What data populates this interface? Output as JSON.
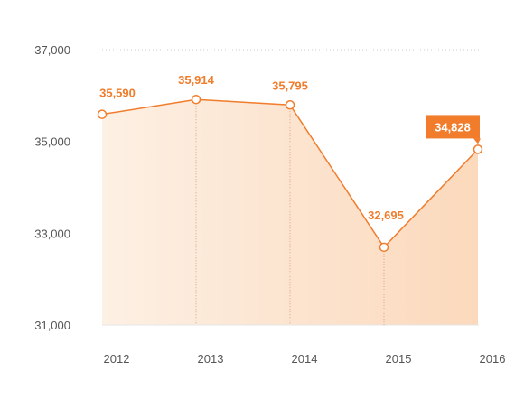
{
  "colors": {
    "accent": "#f07c2c",
    "area_light": "#fdf0e4",
    "area_dark": "#fbd9bc",
    "grid": "#cccccc",
    "tick_text": "#555555",
    "callout_text": "#ffffff"
  },
  "chart_data": {
    "type": "area",
    "title": "",
    "xlabel": "",
    "ylabel": "",
    "categories": [
      "2012",
      "2013",
      "2014",
      "2015",
      "2016"
    ],
    "values": [
      35590,
      35914,
      35795,
      32695,
      34828
    ],
    "data_labels": [
      "35,590",
      "35,914",
      "35,795",
      "32,695",
      "34,828"
    ],
    "highlighted_label": "34,828",
    "ylim": [
      31000,
      37000
    ],
    "yticks": [
      31000,
      33000,
      35000,
      37000
    ],
    "ytick_labels": [
      "31,000",
      "33,000",
      "35,000",
      "37,000"
    ],
    "grid": "dotted horizontal at top, dotted vertical drop lines at points",
    "legend": "none"
  }
}
